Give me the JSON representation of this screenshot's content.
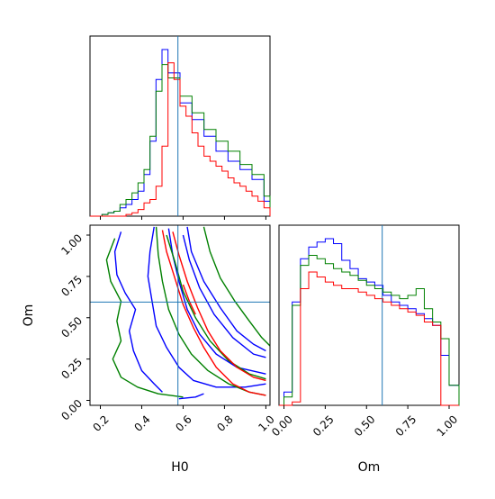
{
  "colors": {
    "blue": "#0000ff",
    "green": "#008000",
    "red": "#ff0000",
    "truth": "#1f77b4"
  },
  "chart_data": [
    {
      "panel": "H0 marginal",
      "type": "histogram",
      "xlim": [
        0.15,
        1.02
      ],
      "truth": 0.575,
      "bin_edges": [
        0.15,
        0.179,
        0.208,
        0.237,
        0.266,
        0.295,
        0.324,
        0.353,
        0.382,
        0.411,
        0.44,
        0.469,
        0.498,
        0.527,
        0.556,
        0.585,
        0.614,
        0.643,
        0.672,
        0.701,
        0.73,
        0.759,
        0.788,
        0.817,
        0.846,
        0.875,
        0.904,
        0.933,
        0.962,
        0.991,
        1.02
      ],
      "series": [
        {
          "color": "blue",
          "values": [
            0,
            0,
            0.01,
            0.02,
            0.03,
            0.05,
            0.07,
            0.1,
            0.15,
            0.25,
            0.45,
            0.82,
            1.0,
            0.86,
            0.86,
            0.68,
            0.68,
            0.58,
            0.58,
            0.48,
            0.48,
            0.39,
            0.39,
            0.33,
            0.33,
            0.28,
            0.28,
            0.22,
            0.22,
            0.09
          ]
        },
        {
          "color": "green",
          "values": [
            0,
            0,
            0.01,
            0.02,
            0.03,
            0.07,
            0.1,
            0.14,
            0.2,
            0.28,
            0.48,
            0.75,
            0.91,
            0.83,
            0.83,
            0.72,
            0.72,
            0.62,
            0.62,
            0.52,
            0.52,
            0.45,
            0.45,
            0.39,
            0.39,
            0.31,
            0.31,
            0.25,
            0.25,
            0.12
          ]
        },
        {
          "color": "red",
          "values": [
            0,
            0,
            0,
            0,
            0,
            0,
            0.01,
            0.02,
            0.04,
            0.08,
            0.1,
            0.18,
            0.42,
            0.92,
            0.82,
            0.66,
            0.6,
            0.5,
            0.42,
            0.36,
            0.33,
            0.3,
            0.27,
            0.23,
            0.2,
            0.18,
            0.15,
            0.12,
            0.09,
            0.05
          ]
        }
      ]
    },
    {
      "panel": "Om marginal",
      "type": "histogram",
      "xlim": [
        -0.03,
        1.06
      ],
      "truth": 0.595,
      "bin_edges": [
        -0.03,
        0.0,
        0.05,
        0.1,
        0.15,
        0.2,
        0.25,
        0.3,
        0.35,
        0.4,
        0.45,
        0.5,
        0.55,
        0.6,
        0.65,
        0.7,
        0.75,
        0.8,
        0.85,
        0.9,
        0.95,
        1.0,
        1.06
      ],
      "series": [
        {
          "color": "blue",
          "values": [
            0,
            0.08,
            0.62,
            0.88,
            0.95,
            0.98,
            1.0,
            0.97,
            0.87,
            0.82,
            0.76,
            0.74,
            0.72,
            0.66,
            0.62,
            0.6,
            0.58,
            0.55,
            0.52,
            0.48,
            0.3,
            0.12
          ]
        },
        {
          "color": "green",
          "values": [
            0,
            0.05,
            0.6,
            0.84,
            0.9,
            0.88,
            0.85,
            0.82,
            0.8,
            0.78,
            0.75,
            0.72,
            0.7,
            0.68,
            0.66,
            0.64,
            0.66,
            0.7,
            0.58,
            0.5,
            0.4,
            0.12
          ]
        },
        {
          "color": "red",
          "values": [
            0,
            0,
            0.02,
            0.7,
            0.8,
            0.77,
            0.74,
            0.72,
            0.7,
            0.7,
            0.68,
            0.66,
            0.64,
            0.62,
            0.6,
            0.58,
            0.56,
            0.54,
            0.5,
            0.48,
            0.0,
            0.0
          ]
        }
      ]
    },
    {
      "panel": "H0 vs Om",
      "type": "contour",
      "xlabel": "H0",
      "ylabel": "Om",
      "xlim": [
        0.15,
        1.02
      ],
      "ylim": [
        -0.03,
        1.06
      ],
      "xticks": [
        0.2,
        0.4,
        0.6,
        0.8,
        1.0
      ],
      "xtick_labels": [
        "0.2",
        "0.4",
        "0.6",
        "0.8",
        "1.0"
      ],
      "yticks": [
        0.0,
        0.25,
        0.5,
        0.75,
        1.0
      ],
      "ytick_labels": [
        "0.00",
        "0.25",
        "0.50",
        "0.75",
        "1.00"
      ],
      "truth": {
        "x": 0.575,
        "y": 0.595
      },
      "contours": [
        {
          "color": "blue",
          "points": [
            [
              0.46,
              1.05
            ],
            [
              0.44,
              0.9
            ],
            [
              0.43,
              0.75
            ],
            [
              0.45,
              0.6
            ],
            [
              0.47,
              0.45
            ],
            [
              0.52,
              0.32
            ],
            [
              0.58,
              0.2
            ],
            [
              0.65,
              0.12
            ],
            [
              0.76,
              0.08
            ],
            [
              0.9,
              0.08
            ],
            [
              1.0,
              0.1
            ]
          ]
        },
        {
          "color": "blue",
          "points": [
            [
              0.62,
              1.05
            ],
            [
              0.64,
              0.9
            ],
            [
              0.7,
              0.72
            ],
            [
              0.78,
              0.56
            ],
            [
              0.86,
              0.42
            ],
            [
              0.94,
              0.34
            ],
            [
              1.0,
              0.3
            ]
          ]
        },
        {
          "color": "blue",
          "points": [
            [
              0.53,
              1.04
            ],
            [
              0.55,
              0.88
            ],
            [
              0.58,
              0.72
            ],
            [
              0.62,
              0.55
            ],
            [
              0.68,
              0.4
            ],
            [
              0.76,
              0.28
            ],
            [
              0.86,
              0.2
            ],
            [
              1.0,
              0.16
            ]
          ]
        },
        {
          "color": "blue",
          "points": [
            [
              0.6,
              1.0
            ],
            [
              0.63,
              0.85
            ],
            [
              0.68,
              0.68
            ],
            [
              0.75,
              0.52
            ],
            [
              0.84,
              0.38
            ],
            [
              0.94,
              0.28
            ],
            [
              1.0,
              0.26
            ]
          ]
        },
        {
          "color": "blue",
          "points": [
            [
              0.3,
              1.02
            ],
            [
              0.27,
              0.9
            ],
            [
              0.28,
              0.76
            ],
            [
              0.32,
              0.65
            ],
            [
              0.37,
              0.55
            ],
            [
              0.34,
              0.42
            ],
            [
              0.36,
              0.3
            ],
            [
              0.4,
              0.18
            ],
            [
              0.46,
              0.1
            ],
            [
              0.5,
              0.05
            ]
          ]
        },
        {
          "color": "blue",
          "points": [
            [
              0.58,
              0.01
            ],
            [
              0.66,
              0.02
            ],
            [
              0.7,
              0.04
            ]
          ]
        },
        {
          "color": "green",
          "points": [
            [
              0.47,
              1.05
            ],
            [
              0.48,
              0.88
            ],
            [
              0.5,
              0.72
            ],
            [
              0.53,
              0.55
            ],
            [
              0.58,
              0.4
            ],
            [
              0.64,
              0.28
            ],
            [
              0.72,
              0.18
            ],
            [
              0.82,
              0.1
            ],
            [
              0.92,
              0.05
            ],
            [
              1.0,
              0.03
            ]
          ]
        },
        {
          "color": "green",
          "points": [
            [
              0.7,
              1.05
            ],
            [
              0.73,
              0.9
            ],
            [
              0.78,
              0.74
            ],
            [
              0.85,
              0.6
            ],
            [
              0.92,
              0.48
            ],
            [
              0.98,
              0.38
            ],
            [
              1.02,
              0.33
            ]
          ]
        },
        {
          "color": "green",
          "points": [
            [
              0.52,
              1.0
            ],
            [
              0.56,
              0.84
            ],
            [
              0.6,
              0.66
            ],
            [
              0.66,
              0.5
            ],
            [
              0.73,
              0.36
            ],
            [
              0.82,
              0.24
            ],
            [
              0.92,
              0.16
            ],
            [
              1.0,
              0.13
            ]
          ]
        },
        {
          "color": "green",
          "points": [
            [
              0.27,
              0.98
            ],
            [
              0.23,
              0.85
            ],
            [
              0.25,
              0.72
            ],
            [
              0.3,
              0.6
            ],
            [
              0.28,
              0.48
            ],
            [
              0.3,
              0.36
            ],
            [
              0.26,
              0.25
            ],
            [
              0.3,
              0.14
            ],
            [
              0.38,
              0.08
            ],
            [
              0.48,
              0.04
            ],
            [
              0.6,
              0.02
            ]
          ]
        },
        {
          "color": "red",
          "points": [
            [
              0.5,
              1.03
            ],
            [
              0.52,
              0.9
            ],
            [
              0.56,
              0.74
            ],
            [
              0.6,
              0.58
            ],
            [
              0.65,
              0.44
            ],
            [
              0.7,
              0.32
            ],
            [
              0.76,
              0.2
            ],
            [
              0.84,
              0.1
            ],
            [
              0.92,
              0.05
            ],
            [
              1.0,
              0.03
            ]
          ]
        },
        {
          "color": "red",
          "points": [
            [
              0.55,
              1.02
            ],
            [
              0.58,
              0.88
            ],
            [
              0.62,
              0.72
            ],
            [
              0.67,
              0.56
            ],
            [
              0.72,
              0.42
            ],
            [
              0.78,
              0.3
            ],
            [
              0.86,
              0.2
            ],
            [
              0.94,
              0.14
            ],
            [
              1.0,
              0.12
            ]
          ]
        },
        {
          "color": "red",
          "points": [
            [
              0.6,
              0.7
            ],
            [
              0.63,
              0.6
            ],
            [
              0.66,
              0.52
            ]
          ]
        }
      ]
    }
  ]
}
